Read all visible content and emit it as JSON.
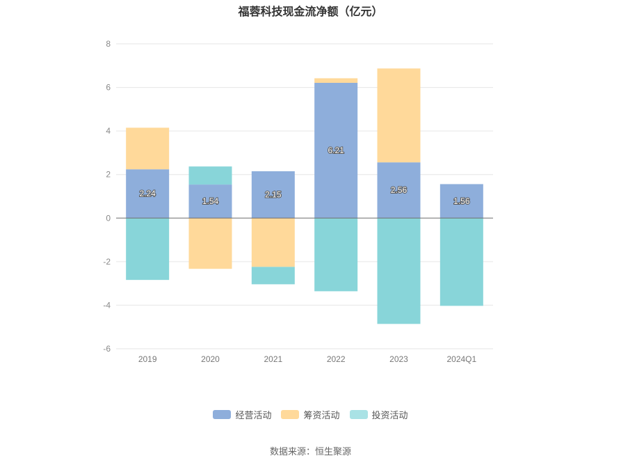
{
  "chart_data": {
    "type": "bar",
    "stacked": true,
    "title": "福蓉科技现金流净额（亿元）",
    "categories": [
      "2019",
      "2020",
      "2021",
      "2022",
      "2023",
      "2024Q1"
    ],
    "series": [
      {
        "name": "经营活动",
        "color": "#8eaedb",
        "values": [
          2.24,
          1.54,
          2.15,
          6.21,
          2.56,
          1.56
        ],
        "show_labels": true
      },
      {
        "name": "筹资活动",
        "color": "#ffd99a",
        "values": [
          1.91,
          -2.33,
          -2.24,
          0.21,
          4.31,
          0
        ],
        "show_labels": false
      },
      {
        "name": "投资活动",
        "color": "#88d5d9",
        "values": [
          -2.84,
          0.83,
          -0.8,
          -3.36,
          -4.86,
          -4.03
        ],
        "show_labels": false
      }
    ],
    "yticks": [
      8,
      6,
      4,
      2,
      0,
      -2,
      -4,
      -6
    ],
    "ylim": [
      -6,
      8
    ],
    "xlabel": "",
    "ylabel": "",
    "grid": true,
    "legend_position": "bottom"
  },
  "source": "数据来源：恒生聚源"
}
